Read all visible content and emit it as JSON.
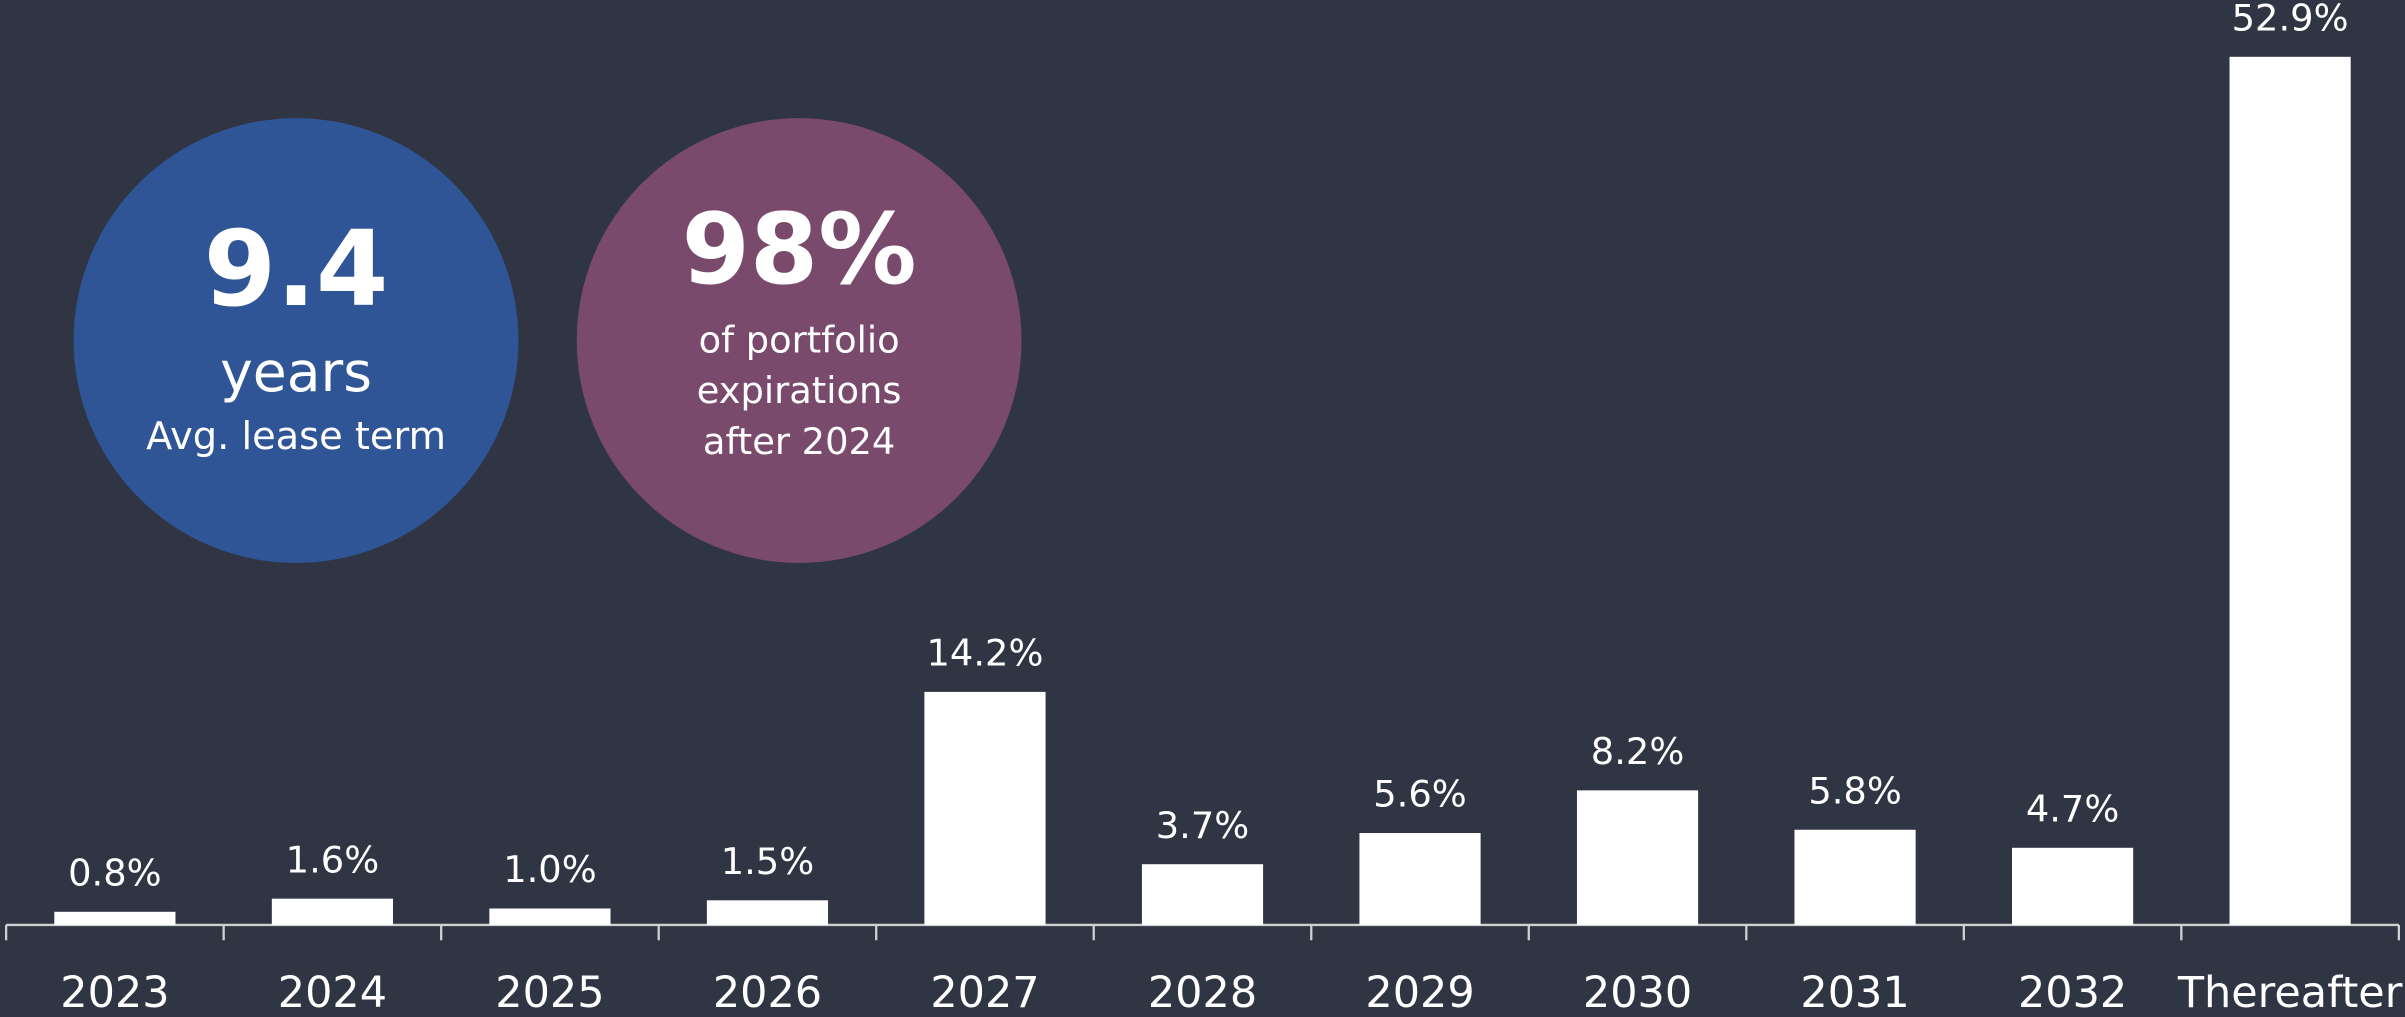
{
  "chart_data": {
    "type": "bar",
    "categories": [
      "2023",
      "2024",
      "2025",
      "2026",
      "2027",
      "2028",
      "2029",
      "2030",
      "2031",
      "2032",
      "Thereafter"
    ],
    "values": [
      0.8,
      1.6,
      1.0,
      1.5,
      14.2,
      3.7,
      5.6,
      8.2,
      5.8,
      4.7,
      52.9
    ],
    "value_labels": [
      "0.8%",
      "1.6%",
      "1.0%",
      "1.5%",
      "14.2%",
      "3.7%",
      "5.6%",
      "8.2%",
      "5.8%",
      "4.7%",
      "52.9%"
    ],
    "color": "#ffffff",
    "callouts": [
      {
        "headline": "9.4",
        "lines": [
          "years",
          "Avg. lease term"
        ],
        "color": "#2f5597"
      },
      {
        "headline": "98%",
        "lines": [
          "of portfolio",
          "expirations",
          "after 2024"
        ],
        "color": "#7a4a6c"
      }
    ]
  }
}
